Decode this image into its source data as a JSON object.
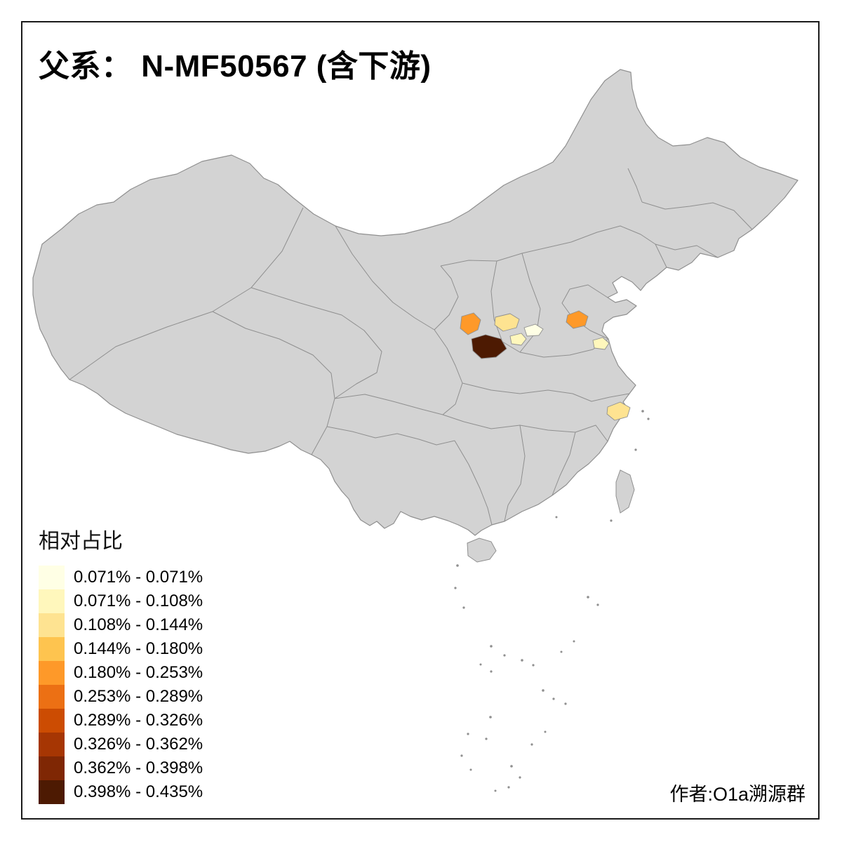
{
  "title": "父系： N-MF50567 (含下游)",
  "legend": {
    "title": "相对占比",
    "classes": [
      {
        "label": "0.071% - 0.071%",
        "color": "#FFFFE5"
      },
      {
        "label": "0.071% - 0.108%",
        "color": "#FFF7BC"
      },
      {
        "label": "0.108% - 0.144%",
        "color": "#FEE391"
      },
      {
        "label": "0.144% - 0.180%",
        "color": "#FEC44F"
      },
      {
        "label": "0.180% - 0.253%",
        "color": "#FE9929"
      },
      {
        "label": "0.253% - 0.289%",
        "color": "#EC7014"
      },
      {
        "label": "0.289% - 0.326%",
        "color": "#CC4C02"
      },
      {
        "label": "0.326% - 0.362%",
        "color": "#A63603"
      },
      {
        "label": "0.362% - 0.398%",
        "color": "#7F2704"
      },
      {
        "label": "0.398% - 0.435%",
        "color": "#4D1A02"
      }
    ]
  },
  "map": {
    "base_fill": "#D3D3D3",
    "border_color": "#8F8F8F",
    "background": "#FFFFFF",
    "regions": [
      {
        "id": "region-1",
        "color": "#FE9929"
      },
      {
        "id": "region-2",
        "color": "#FEE391"
      },
      {
        "id": "region-3",
        "color": "#FFFFE5"
      },
      {
        "id": "region-4",
        "color": "#FFF7BC"
      },
      {
        "id": "region-5",
        "color": "#4D1A02"
      },
      {
        "id": "region-6",
        "color": "#FE9929"
      },
      {
        "id": "region-7",
        "color": "#FFF7BC"
      },
      {
        "id": "region-8",
        "color": "#FEE391"
      }
    ]
  },
  "credit": "作者:O1a溯源群"
}
